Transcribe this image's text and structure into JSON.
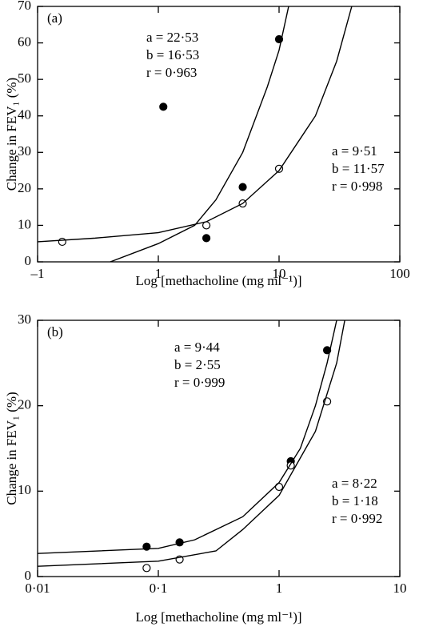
{
  "chart_data": [
    {
      "type": "scatter",
      "panel_label": "(a)",
      "x_label": "Log [methacholine (mg ml⁻¹)]",
      "y_label": "Change in FEV₁ (%)",
      "log_x": true,
      "xlim": [
        0.1,
        100
      ],
      "xticks": [
        {
          "value": 0.1,
          "label": "–1"
        },
        1,
        10,
        100
      ],
      "ylim": [
        0,
        70
      ],
      "yticks": [
        0,
        10,
        20,
        30,
        40,
        50,
        60,
        70
      ],
      "series": [
        {
          "marker": "filled",
          "color": "#000000",
          "x": [
            1.1,
            2.5,
            5,
            10
          ],
          "values": [
            42.5,
            6.5,
            20.5,
            61
          ]
        },
        {
          "marker": "open",
          "color": "#000000",
          "x": [
            0.16,
            2.5,
            5,
            10
          ],
          "values": [
            5.5,
            10,
            16,
            25.5
          ]
        },
        {
          "marker": "line",
          "color": "#000000",
          "x": [
            0.4,
            1,
            2,
            3,
            5,
            8,
            10,
            12
          ],
          "values": [
            0,
            5,
            10,
            17,
            30,
            48,
            58,
            70
          ]
        },
        {
          "marker": "line",
          "color": "#000000",
          "x": [
            0.1,
            0.3,
            1,
            2.5,
            5,
            10,
            20,
            30,
            40
          ],
          "values": [
            5.5,
            6.5,
            8,
            11,
            16,
            25,
            40,
            55,
            70
          ]
        }
      ],
      "annotations": [
        [
          "a = 22·53",
          "b = 16·53",
          "r = 0·963"
        ],
        [
          "a = 9·51",
          "b = 11·57",
          "r = 0·998"
        ]
      ]
    },
    {
      "type": "scatter",
      "panel_label": "(b)",
      "x_label": "Log [methacholine (mg ml⁻¹)]",
      "y_label": "Change in FEV₁ (%)",
      "log_x": true,
      "xlim": [
        0.01,
        10
      ],
      "xticks": [
        {
          "value": 0.01,
          "label": "0·01"
        },
        {
          "value": 0.1,
          "label": "0·1"
        },
        1,
        10
      ],
      "ylim": [
        0,
        30
      ],
      "yticks": [
        0,
        10,
        20,
        30
      ],
      "series": [
        {
          "marker": "filled",
          "color": "#000000",
          "x": [
            0.08,
            0.15,
            1.25,
            2.5
          ],
          "values": [
            3.5,
            4,
            13.5,
            26.5
          ]
        },
        {
          "marker": "open",
          "color": "#000000",
          "x": [
            0.08,
            0.15,
            1,
            1.25,
            2.5
          ],
          "values": [
            1,
            2,
            10.5,
            13,
            20.5
          ]
        },
        {
          "marker": "line",
          "color": "#000000",
          "x": [
            0.01,
            0.1,
            0.2,
            0.5,
            1,
            1.5,
            2,
            2.5,
            3
          ],
          "values": [
            2.7,
            3.3,
            4.3,
            7,
            11,
            15,
            20,
            25,
            30
          ]
        },
        {
          "marker": "line",
          "color": "#000000",
          "x": [
            0.01,
            0.1,
            0.3,
            0.5,
            1,
            2,
            3,
            3.5
          ],
          "values": [
            1.2,
            1.8,
            3,
            5.5,
            9.5,
            17,
            25,
            30
          ]
        }
      ],
      "annotations": [
        [
          "a = 9·44",
          "b = 2·55",
          "r = 0·999"
        ],
        [
          "a = 8·22",
          "b = 1·18",
          "r = 0·992"
        ]
      ]
    }
  ]
}
